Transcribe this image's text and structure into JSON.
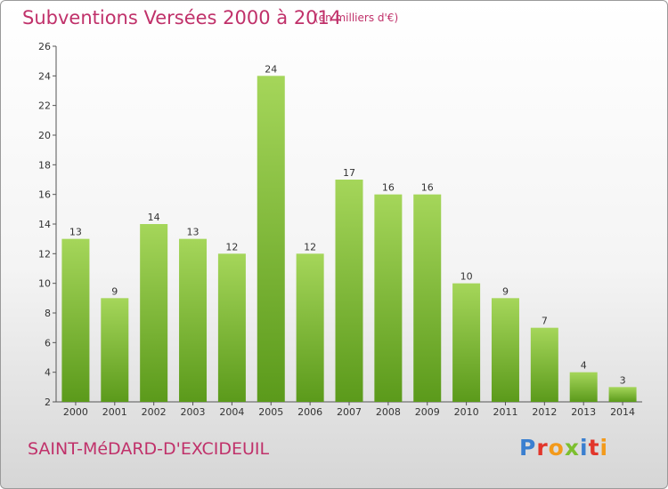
{
  "header": {
    "title": "Subventions Versées 2000 à 2014",
    "subtitle": "(en milliers d'€)"
  },
  "footer": {
    "commune": "SAINT-MéDARD-D'EXCIDEUIL",
    "logo": "Proxiti",
    "logo_colors": [
      "#3a7fd0",
      "#e2362b",
      "#f39a1b",
      "#7cbf2e",
      "#3a7fd0",
      "#e2362b",
      "#f39a1b"
    ]
  },
  "chart_data": {
    "type": "bar",
    "categories": [
      "2000",
      "2001",
      "2002",
      "2003",
      "2004",
      "2005",
      "2006",
      "2007",
      "2008",
      "2009",
      "2010",
      "2011",
      "2012",
      "2013",
      "2014"
    ],
    "values": [
      13,
      9,
      14,
      13,
      12,
      24,
      12,
      17,
      16,
      16,
      10,
      9,
      7,
      4,
      3
    ],
    "title": "Subventions Versées 2000 à 2014",
    "subtitle": "(en milliers d'€)",
    "ylim": [
      2,
      26
    ],
    "yticks": [
      2,
      4,
      6,
      8,
      10,
      12,
      14,
      16,
      18,
      20,
      22,
      24,
      26
    ],
    "grid": false,
    "bar_color_light": "#a5d65a",
    "bar_color_dark": "#5b9a1b"
  }
}
